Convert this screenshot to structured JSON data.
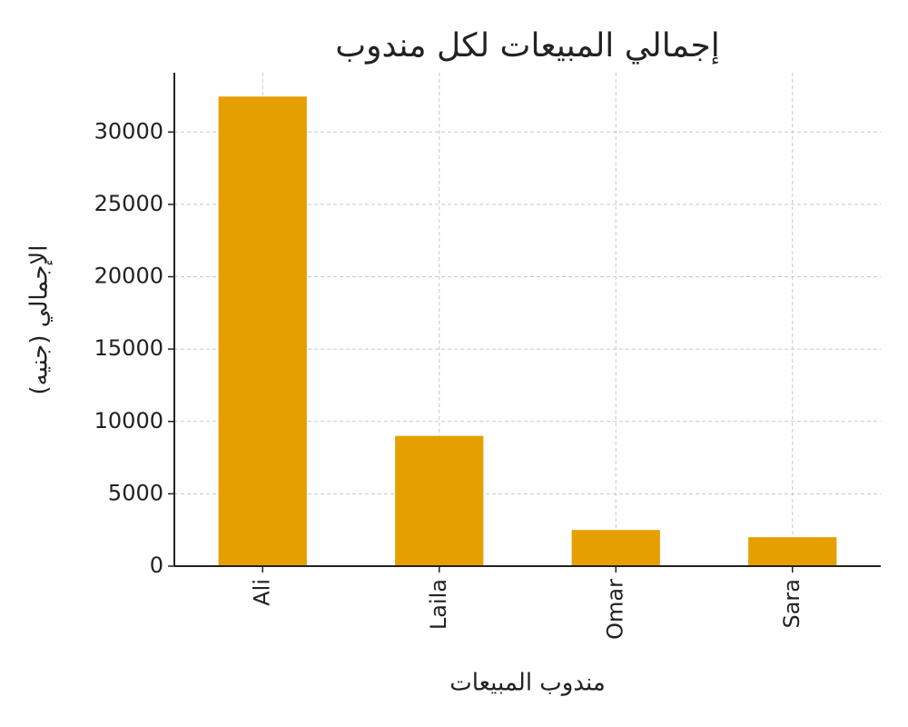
{
  "chart_data": {
    "type": "bar",
    "title": "إجمالي المبيعات لكل مندوب",
    "x_label": "مندوب المبيعات",
    "y_label": "الإجمالي (جنيه)",
    "categories": [
      "Ali",
      "Laila",
      "Omar",
      "Sara"
    ],
    "values": [
      32450,
      9000,
      2500,
      2000
    ],
    "color": "#e69f00",
    "ylim": [
      0,
      34100
    ],
    "yticks": [
      0,
      5000,
      10000,
      15000,
      20000,
      25000,
      30000
    ],
    "grid": true
  }
}
